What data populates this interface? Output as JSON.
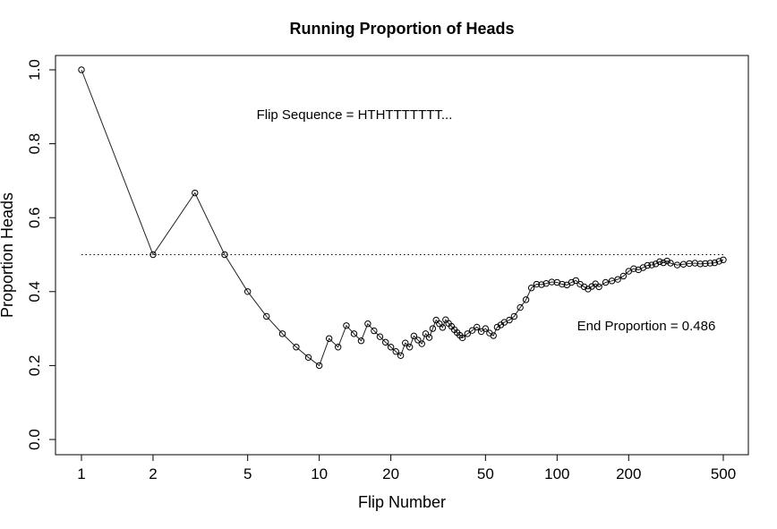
{
  "chart_data": {
    "type": "line",
    "title": "Running Proportion of Heads",
    "xlabel": "Flip Number",
    "ylabel": "Proportion Heads",
    "x_scale": "log",
    "xlim": [
      1,
      500
    ],
    "ylim": [
      0,
      1
    ],
    "x_ticks": [
      1,
      2,
      5,
      10,
      20,
      50,
      100,
      200,
      500
    ],
    "y_ticks": [
      0.0,
      0.2,
      0.4,
      0.6,
      0.8,
      1.0
    ],
    "x_tick_labels": [
      "1",
      "2",
      "5",
      "10",
      "20",
      "50",
      "100",
      "200",
      "500"
    ],
    "y_tick_labels": [
      "0.0",
      "0.2",
      "0.4",
      "0.6",
      "0.8",
      "1.0"
    ],
    "reference_line": {
      "y": 0.5,
      "style": "dotted"
    },
    "annotations": {
      "sequence": "Flip Sequence = HTHTTTTTTT...",
      "end": "End Proportion = 0.486"
    },
    "marker": "open-circle",
    "series_points": [
      [
        1,
        1.0
      ],
      [
        2,
        0.5
      ],
      [
        3,
        0.667
      ],
      [
        4,
        0.5
      ],
      [
        5,
        0.4
      ],
      [
        6,
        0.333
      ],
      [
        7,
        0.286
      ],
      [
        8,
        0.25
      ],
      [
        9,
        0.222
      ],
      [
        10,
        0.2
      ],
      [
        11,
        0.273
      ],
      [
        12,
        0.25
      ],
      [
        13,
        0.308
      ],
      [
        14,
        0.286
      ],
      [
        15,
        0.267
      ],
      [
        16,
        0.313
      ],
      [
        17,
        0.294
      ],
      [
        18,
        0.278
      ],
      [
        19,
        0.263
      ],
      [
        20,
        0.25
      ],
      [
        21,
        0.238
      ],
      [
        22,
        0.227
      ],
      [
        23,
        0.261
      ],
      [
        24,
        0.25
      ],
      [
        25,
        0.28
      ],
      [
        26,
        0.269
      ],
      [
        27,
        0.259
      ],
      [
        28,
        0.286
      ],
      [
        29,
        0.276
      ],
      [
        30,
        0.3
      ],
      [
        31,
        0.323
      ],
      [
        32,
        0.313
      ],
      [
        33,
        0.303
      ],
      [
        34,
        0.324
      ],
      [
        35,
        0.314
      ],
      [
        36,
        0.306
      ],
      [
        37,
        0.297
      ],
      [
        38,
        0.289
      ],
      [
        39,
        0.282
      ],
      [
        40,
        0.275
      ],
      [
        42,
        0.286
      ],
      [
        44,
        0.295
      ],
      [
        46,
        0.304
      ],
      [
        48,
        0.292
      ],
      [
        50,
        0.3
      ],
      [
        52,
        0.288
      ],
      [
        54,
        0.281
      ],
      [
        56,
        0.304
      ],
      [
        58,
        0.31
      ],
      [
        60,
        0.317
      ],
      [
        63,
        0.323
      ],
      [
        66,
        0.333
      ],
      [
        70,
        0.357
      ],
      [
        74,
        0.378
      ],
      [
        78,
        0.41
      ],
      [
        82,
        0.42
      ],
      [
        86,
        0.419
      ],
      [
        90,
        0.422
      ],
      [
        95,
        0.426
      ],
      [
        100,
        0.425
      ],
      [
        105,
        0.42
      ],
      [
        110,
        0.418
      ],
      [
        115,
        0.425
      ],
      [
        120,
        0.43
      ],
      [
        125,
        0.42
      ],
      [
        130,
        0.413
      ],
      [
        135,
        0.407
      ],
      [
        140,
        0.414
      ],
      [
        145,
        0.421
      ],
      [
        150,
        0.413
      ],
      [
        160,
        0.425
      ],
      [
        170,
        0.429
      ],
      [
        180,
        0.433
      ],
      [
        190,
        0.442
      ],
      [
        200,
        0.455
      ],
      [
        210,
        0.462
      ],
      [
        220,
        0.459
      ],
      [
        230,
        0.465
      ],
      [
        240,
        0.471
      ],
      [
        250,
        0.472
      ],
      [
        260,
        0.475
      ],
      [
        270,
        0.481
      ],
      [
        280,
        0.478
      ],
      [
        290,
        0.483
      ],
      [
        300,
        0.477
      ],
      [
        320,
        0.472
      ],
      [
        340,
        0.474
      ],
      [
        360,
        0.476
      ],
      [
        380,
        0.477
      ],
      [
        400,
        0.475
      ],
      [
        420,
        0.476
      ],
      [
        440,
        0.477
      ],
      [
        460,
        0.478
      ],
      [
        480,
        0.482
      ],
      [
        500,
        0.486
      ]
    ]
  }
}
